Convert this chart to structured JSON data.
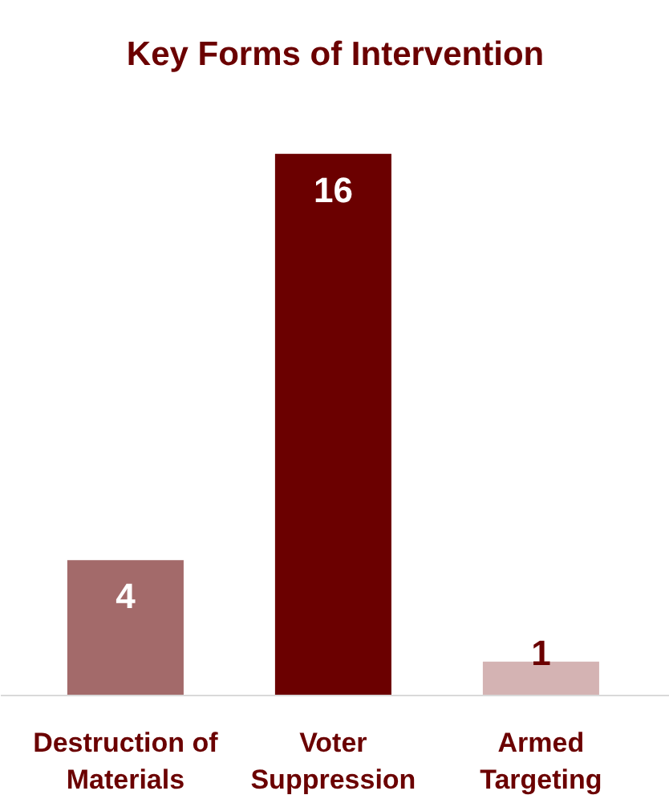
{
  "chart_data": {
    "type": "bar",
    "title": "Key Forms of Intervention",
    "categories": [
      "Destruction of Materials",
      "Voter Suppression",
      "Armed Targeting"
    ],
    "values": [
      4,
      16,
      1
    ],
    "colors": [
      "#a36a6a",
      "#6b0000",
      "#d4b3b3"
    ],
    "data_labels": true,
    "grid": false
  }
}
